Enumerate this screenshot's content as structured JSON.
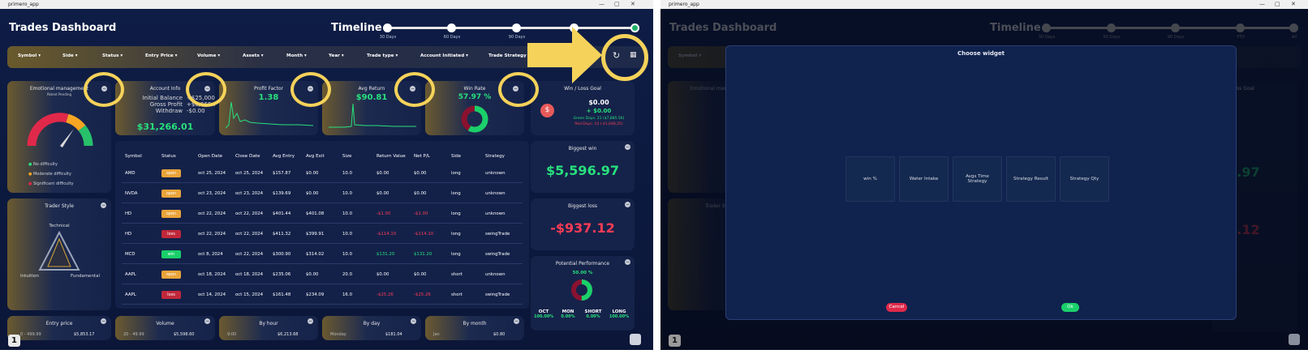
{
  "window": {
    "title": "primero_app"
  },
  "dashboard": {
    "title": "Trades Dashboard",
    "timeline": {
      "title": "Timeline",
      "points": [
        "30 Days",
        "60 Days",
        "90 Days",
        "YTD",
        "All"
      ],
      "selected": "All"
    }
  },
  "filters": [
    "Symbol",
    "Side",
    "Status",
    "Entry Price",
    "Volume",
    "Assets",
    "Month",
    "Year",
    "Trade type",
    "Account Initiated",
    "Trade Strategy"
  ],
  "cards": {
    "emotional": {
      "title": "Emotional management",
      "subtitle": "Patent Pending",
      "legend": [
        "No difficulty",
        "Moderate difficulty",
        "Significant difficulty"
      ]
    },
    "account_info": {
      "title": "Account Info",
      "rows": [
        {
          "label": "Initial Balance",
          "value": "+$25,000.00"
        },
        {
          "label": "Gross Profit",
          "value": "+$6,266.01"
        },
        {
          "label": "Withdraw",
          "value": "-$0.00"
        }
      ],
      "total": "$31,266.01"
    },
    "profit_factor": {
      "title": "Profit Factor",
      "value": "1.38"
    },
    "avg_return": {
      "title": "Avg Return",
      "value": "$90.81"
    },
    "win_rate": {
      "title": "Win Rate",
      "value": "57.97 %",
      "percent": 57.97
    },
    "win_loss_goal": {
      "title": "Win / Loss Goal",
      "value": "$0.00",
      "change": "+ $0.00",
      "green_days": "Green Days: 21 ($7,885.56)",
      "red_days": "Red Days: 14 (-$1,648.25)"
    },
    "biggest_win": {
      "title": "Biggest win",
      "value": "$5,596.97"
    },
    "biggest_loss": {
      "title": "Biggest loss",
      "value": "-$937.12"
    },
    "potential": {
      "title": "Potential Performance",
      "value": "50.00 %",
      "cols": [
        {
          "label": "OCT",
          "value": "100.00%"
        },
        {
          "label": "MON",
          "value": "0.00%"
        },
        {
          "label": "SHORT",
          "value": "0.00%"
        },
        {
          "label": "LONG",
          "value": "100.00%"
        }
      ]
    },
    "trader_style": {
      "title": "Trader Style",
      "labels": [
        "Technical",
        "Intuition",
        "Fundamental"
      ]
    },
    "entry_price": {
      "title": "Entry price",
      "a": "0 - 499.99",
      "b": "$5,853.17"
    },
    "volume": {
      "title": "Volume",
      "a": "20 - 49.99",
      "b": "$5,598.60"
    },
    "by_hour": {
      "title": "By hour",
      "a": "9:00",
      "b": "$6,213.68"
    },
    "by_day": {
      "title": "By day",
      "a": "Monday",
      "b": "$181.04"
    },
    "by_month": {
      "title": "By month",
      "a": "Jan",
      "b": "$0.80"
    }
  },
  "table": {
    "headers": [
      "Symbol",
      "Status",
      "Open Date",
      "Close Date",
      "Avg Entry",
      "Avg Exit",
      "Size",
      "Return Value",
      "Net P/L",
      "Side",
      "Strategy"
    ],
    "rows": [
      [
        "AMD",
        "open",
        "oct 25, 2024",
        "oct 25, 2024",
        "$157.87",
        "$0.00",
        "10.0",
        "$0.00",
        "$0.00",
        "long",
        "unknown"
      ],
      [
        "NVDA",
        "open",
        "oct 23, 2024",
        "oct 23, 2024",
        "$139.69",
        "$0.00",
        "10.0",
        "$0.00",
        "$0.00",
        "long",
        "unknown"
      ],
      [
        "HD",
        "open",
        "oct 22, 2024",
        "oct 22, 2024",
        "$401.44",
        "$401.08",
        "10.0",
        "-$1.00",
        "-$1.00",
        "long",
        "unknown"
      ],
      [
        "HD",
        "loss",
        "oct 22, 2024",
        "oct 22, 2024",
        "$411.32",
        "$399.91",
        "10.0",
        "-$114.10",
        "-$114.10",
        "long",
        "swingTrade"
      ],
      [
        "MCD",
        "win",
        "oct 8, 2024",
        "oct 22, 2024",
        "$300.90",
        "$314.02",
        "10.0",
        "$131.20",
        "$131.20",
        "long",
        "swingTrade"
      ],
      [
        "AAPL",
        "open",
        "oct 18, 2024",
        "oct 18, 2024",
        "$235.06",
        "$0.00",
        "20.0",
        "$0.00",
        "$0.00",
        "short",
        "unknown"
      ],
      [
        "AAPL",
        "loss",
        "oct 14, 2024",
        "oct 15, 2024",
        "$161.48",
        "$234.09",
        "16.0",
        "-$25.26",
        "-$25.26",
        "short",
        "swingTrade"
      ]
    ]
  },
  "modal": {
    "title": "Choose widget",
    "options": [
      "win %",
      "Water Intake",
      "Avgs Time Strategy",
      "Strategy Result",
      "Strategy Qty"
    ],
    "cancel": "Cancel",
    "ok": "Ok"
  },
  "colors": {
    "accent_green": "#28e07c",
    "accent_red": "#ff3b55",
    "highlight_yellow": "#f5d25a",
    "background": "#0d1a3e"
  }
}
